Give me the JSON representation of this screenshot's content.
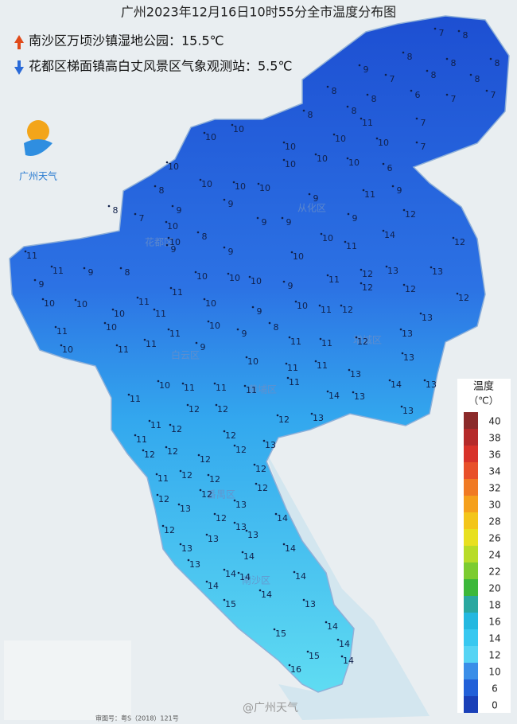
{
  "header": {
    "title": "广州2023年12月16日10时55分全市温度分布图"
  },
  "annotations": [
    {
      "text": "南沙区万顷沙镇湿地公园：15.5℃"
    },
    {
      "text": "花都区梯面镇高白丈风景区气象观测站：5.5℃"
    }
  ],
  "logo": {
    "text": "广州天气"
  },
  "legend": {
    "title": "温度",
    "unit": "（℃）",
    "ticks": [
      40,
      38,
      36,
      34,
      32,
      30,
      28,
      26,
      24,
      22,
      20,
      18,
      16,
      14,
      12,
      10,
      6,
      0
    ],
    "colors": [
      "#8b2a2a",
      "#b52a2a",
      "#d8322a",
      "#e8502a",
      "#f07a24",
      "#f5a01c",
      "#f3c51a",
      "#e8e020",
      "#b8dc28",
      "#7ccc30",
      "#3cb83a",
      "#2aa8a0",
      "#24b8e0",
      "#38c8f0",
      "#56d4f4",
      "#3a8ee8",
      "#2260d8",
      "#1a40b8"
    ]
  },
  "districts": [
    "从化区",
    "花都区",
    "白云区",
    "增城区",
    "黄埔区",
    "番禺区",
    "南沙区"
  ],
  "stations": [
    7,
    8,
    8,
    8,
    8,
    9,
    7,
    8,
    8,
    8,
    8,
    6,
    7,
    7,
    8,
    8,
    10,
    10,
    11,
    10,
    10,
    7,
    10,
    10,
    7,
    10,
    10,
    10,
    10,
    10,
    10,
    6,
    8,
    9,
    9,
    9,
    11,
    9,
    8,
    7,
    10,
    8,
    10,
    9,
    9,
    9,
    12,
    11,
    11,
    9,
    8,
    9,
    9,
    10,
    10,
    11,
    14,
    12,
    9,
    10,
    11,
    11,
    10,
    10,
    10,
    11,
    12,
    13,
    13,
    10,
    10,
    10,
    11,
    10,
    9,
    10,
    11,
    12,
    12,
    12,
    11,
    11,
    10,
    9,
    8,
    12,
    13,
    10,
    11,
    11,
    9,
    9,
    11,
    11,
    12,
    13,
    11,
    10,
    11,
    11,
    10,
    11,
    11,
    13,
    13,
    11,
    12,
    12,
    11,
    11,
    14,
    13,
    14,
    13,
    11,
    12,
    12,
    12,
    13,
    13,
    12,
    12,
    12,
    12,
    13,
    11,
    12,
    12,
    12,
    12,
    12,
    12,
    13,
    12,
    13,
    14,
    12,
    13,
    13,
    13,
    13,
    13,
    14,
    14,
    14,
    14,
    14,
    14,
    14,
    13,
    15,
    14,
    15,
    14,
    15,
    14,
    16
  ],
  "watermark": "@广州天气",
  "approval": "审图号：粤S（2018）121号"
}
